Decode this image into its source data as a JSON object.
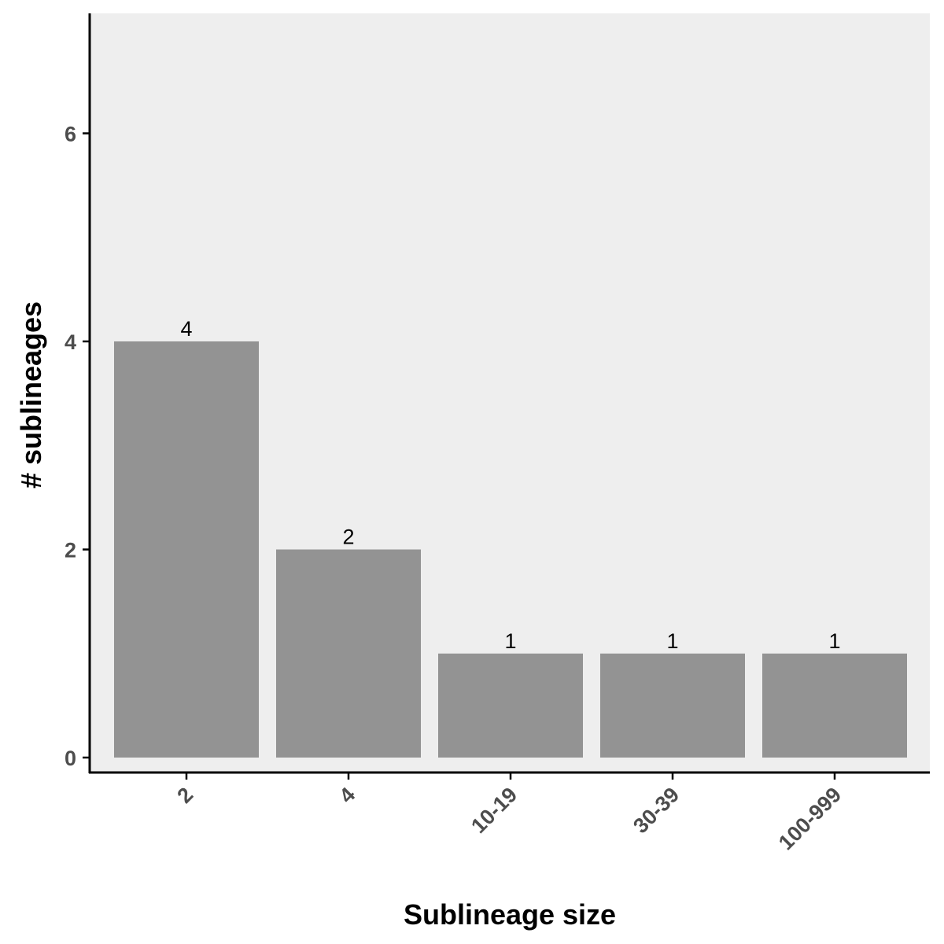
{
  "chart_data": {
    "type": "bar",
    "categories": [
      "2",
      "4",
      "10-19",
      "30-39",
      "100-999"
    ],
    "values": [
      4,
      2,
      1,
      1,
      1
    ],
    "data_labels": [
      "4",
      "2",
      "1",
      "1",
      "1"
    ],
    "xlabel": "Sublineage size",
    "ylabel": "# sublineages",
    "ylim": [
      0,
      7.3
    ],
    "yticks": [
      0,
      2,
      4,
      6
    ],
    "ytick_labels": [
      "0",
      "2",
      "4",
      "6"
    ],
    "grid": false,
    "colors": {
      "bar": "#939393",
      "panel_background": "#eeeeee",
      "axis_line": "#000000",
      "tick_text": "#4d4d4d"
    }
  }
}
